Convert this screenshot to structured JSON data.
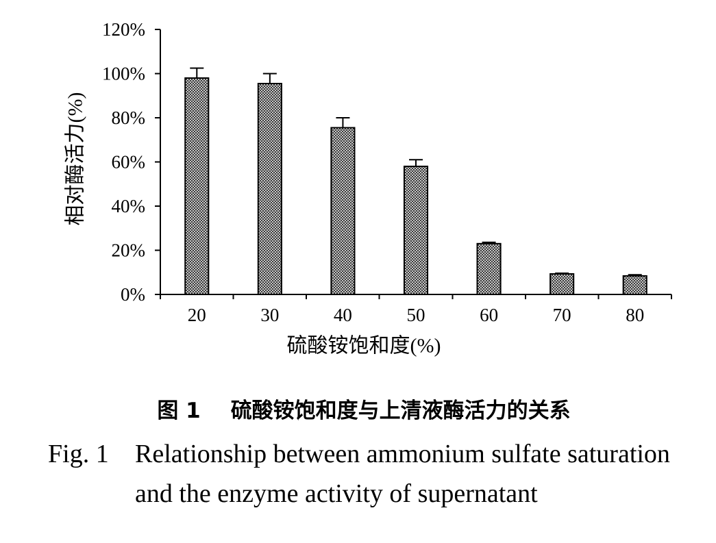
{
  "chart_data": {
    "type": "bar",
    "categories": [
      "20",
      "30",
      "40",
      "50",
      "60",
      "70",
      "80"
    ],
    "values": [
      98,
      95.5,
      75.5,
      58,
      23,
      9.3,
      8.4
    ],
    "errors": [
      4.5,
      4.5,
      4.5,
      3,
      0.6,
      0.3,
      0.5
    ],
    "xlabel": "硫酸铵饱和度(%)",
    "ylabel": "相对酶活力(%)",
    "ylim": [
      0,
      120
    ],
    "yticks": [
      0,
      20,
      40,
      60,
      80,
      100,
      120
    ],
    "ytick_labels": [
      "0%",
      "20%",
      "40%",
      "60%",
      "80%",
      "100%",
      "120%"
    ],
    "grid": false,
    "colors": {
      "bar_stroke": "#000000",
      "hatch": "#2a2a2a",
      "axis": "#000000",
      "background": "#ffffff"
    }
  },
  "caption": {
    "cn_label": "图 1",
    "cn_text": "硫酸铵饱和度与上清液酶活力的关系",
    "en_label": "Fig. 1",
    "en_lines": [
      "Relationship between ammonium sulfate saturation",
      "and the enzyme activity of supernatant"
    ]
  }
}
